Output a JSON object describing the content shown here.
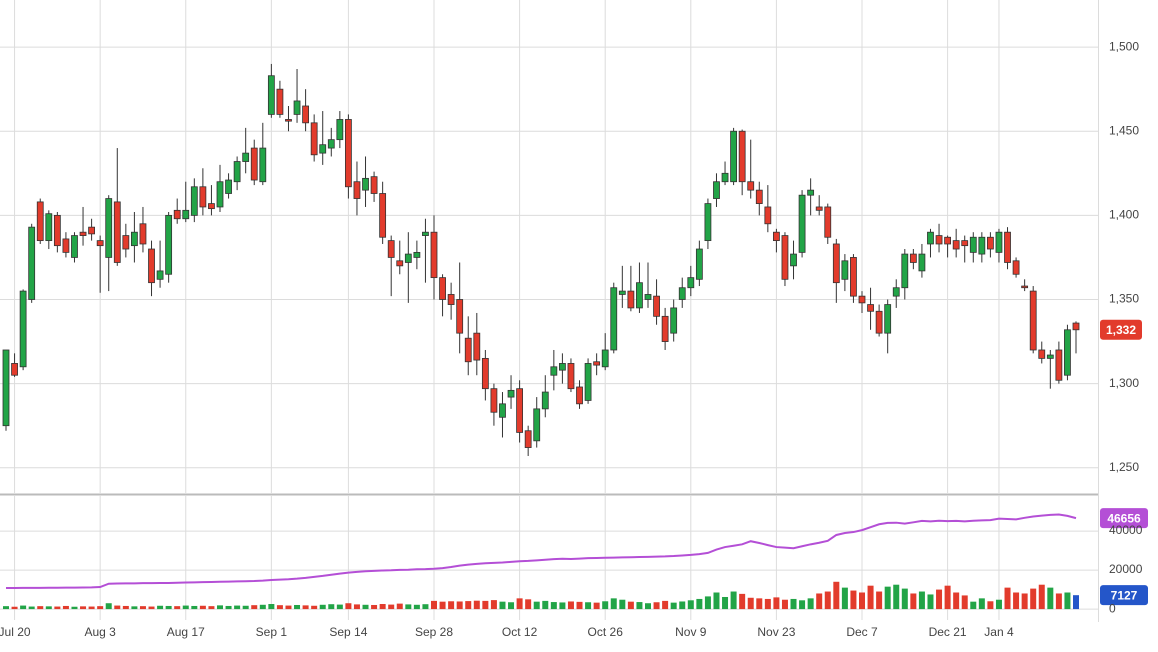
{
  "chart_data": [
    {
      "type": "candlestick",
      "up_color": "#22a447",
      "down_color": "#e23b2c",
      "open": [
        1275,
        1312,
        1310,
        1350,
        1408,
        1385,
        1400,
        1386,
        1375,
        1390,
        1393,
        1385,
        1375,
        1408,
        1388,
        1382,
        1395,
        1380,
        1362,
        1365,
        1403,
        1398,
        1400,
        1417,
        1407,
        1405,
        1413,
        1420,
        1432,
        1440,
        1420,
        1460,
        1475,
        1457,
        1460,
        1465,
        1455,
        1437,
        1440,
        1445,
        1457,
        1420,
        1415,
        1423,
        1413,
        1385,
        1373,
        1372,
        1375,
        1388,
        1390,
        1363,
        1353,
        1350,
        1327,
        1330,
        1315,
        1297,
        1280,
        1292,
        1297,
        1272,
        1266,
        1285,
        1305,
        1308,
        1312,
        1298,
        1290,
        1313,
        1310,
        1320,
        1353,
        1355,
        1345,
        1350,
        1352,
        1340,
        1330,
        1350,
        1357,
        1362,
        1385,
        1410,
        1420,
        1420,
        1450,
        1420,
        1415,
        1405,
        1390,
        1388,
        1370,
        1378,
        1412,
        1405,
        1405,
        1383,
        1362,
        1375,
        1352,
        1347,
        1343,
        1330,
        1352,
        1357,
        1377,
        1367,
        1383,
        1388,
        1387,
        1385,
        1385,
        1378,
        1377,
        1387,
        1378,
        1390,
        1373,
        1358,
        1355,
        1320,
        1315,
        1320,
        1305,
        1336
      ],
      "high": [
        1320,
        1318,
        1356,
        1395,
        1410,
        1403,
        1402,
        1390,
        1390,
        1405,
        1398,
        1388,
        1412,
        1440,
        1395,
        1402,
        1405,
        1385,
        1385,
        1402,
        1410,
        1420,
        1422,
        1428,
        1418,
        1430,
        1425,
        1435,
        1452,
        1445,
        1455,
        1490,
        1480,
        1465,
        1487,
        1475,
        1460,
        1462,
        1452,
        1462,
        1460,
        1432,
        1435,
        1426,
        1420,
        1388,
        1385,
        1390,
        1385,
        1398,
        1400,
        1365,
        1360,
        1372,
        1340,
        1342,
        1320,
        1300,
        1295,
        1305,
        1302,
        1275,
        1292,
        1305,
        1320,
        1318,
        1315,
        1302,
        1315,
        1318,
        1330,
        1360,
        1370,
        1370,
        1372,
        1372,
        1362,
        1345,
        1350,
        1363,
        1370,
        1385,
        1410,
        1425,
        1432,
        1452,
        1451,
        1445,
        1420,
        1418,
        1392,
        1390,
        1385,
        1415,
        1422,
        1412,
        1407,
        1386,
        1377,
        1377,
        1355,
        1357,
        1347,
        1350,
        1362,
        1380,
        1380,
        1383,
        1392,
        1395,
        1388,
        1392,
        1388,
        1390,
        1390,
        1390,
        1392,
        1393,
        1375,
        1362,
        1358,
        1325,
        1320,
        1325,
        1335,
        1337
      ],
      "low": [
        1272,
        1304,
        1308,
        1348,
        1383,
        1380,
        1378,
        1375,
        1372,
        1382,
        1385,
        1354,
        1355,
        1370,
        1375,
        1372,
        1378,
        1352,
        1357,
        1360,
        1395,
        1396,
        1396,
        1400,
        1400,
        1402,
        1410,
        1415,
        1425,
        1418,
        1418,
        1458,
        1458,
        1450,
        1455,
        1450,
        1432,
        1430,
        1435,
        1440,
        1410,
        1400,
        1405,
        1408,
        1383,
        1352,
        1365,
        1348,
        1368,
        1360,
        1350,
        1340,
        1338,
        1318,
        1305,
        1305,
        1290,
        1275,
        1268,
        1285,
        1265,
        1257,
        1262,
        1280,
        1296,
        1300,
        1295,
        1285,
        1288,
        1305,
        1308,
        1318,
        1345,
        1343,
        1342,
        1345,
        1335,
        1320,
        1325,
        1345,
        1352,
        1358,
        1380,
        1405,
        1418,
        1418,
        1412,
        1410,
        1400,
        1390,
        1378,
        1358,
        1362,
        1375,
        1400,
        1400,
        1383,
        1348,
        1355,
        1348,
        1342,
        1332,
        1328,
        1318,
        1345,
        1350,
        1368,
        1363,
        1375,
        1378,
        1375,
        1375,
        1372,
        1372,
        1372,
        1375,
        1372,
        1368,
        1363,
        1355,
        1318,
        1312,
        1297,
        1300,
        1302,
        1318
      ],
      "close": [
        1320,
        1305,
        1355,
        1393,
        1385,
        1401,
        1382,
        1378,
        1388,
        1388,
        1389,
        1382,
        1410,
        1372,
        1380,
        1390,
        1383,
        1360,
        1367,
        1400,
        1398,
        1403,
        1417,
        1405,
        1404,
        1420,
        1421,
        1432,
        1437,
        1421,
        1440,
        1483,
        1460,
        1456,
        1468,
        1455,
        1436,
        1442,
        1445,
        1457,
        1417,
        1410,
        1422,
        1413,
        1387,
        1375,
        1370,
        1377,
        1378,
        1390,
        1363,
        1350,
        1347,
        1330,
        1313,
        1314,
        1297,
        1283,
        1288,
        1296,
        1271,
        1262,
        1285,
        1295,
        1310,
        1312,
        1297,
        1288,
        1312,
        1311,
        1320,
        1357,
        1355,
        1345,
        1360,
        1353,
        1340,
        1325,
        1345,
        1357,
        1363,
        1380,
        1407,
        1420,
        1425,
        1450,
        1420,
        1415,
        1407,
        1395,
        1385,
        1362,
        1377,
        1412,
        1415,
        1403,
        1387,
        1360,
        1373,
        1352,
        1348,
        1343,
        1330,
        1347,
        1357,
        1377,
        1372,
        1377,
        1390,
        1383,
        1383,
        1380,
        1382,
        1387,
        1387,
        1380,
        1390,
        1372,
        1365,
        1357,
        1320,
        1315,
        1317,
        1302,
        1332,
        1332
      ],
      "last_close_label": "1,332",
      "ylim": [
        1235,
        1528
      ],
      "yticks": [
        {
          "value": 1250,
          "label": "1,250"
        },
        {
          "value": 1300,
          "label": "1,300"
        },
        {
          "value": 1350,
          "label": "1,350"
        },
        {
          "value": 1400,
          "label": "1,400"
        },
        {
          "value": 1450,
          "label": "1,450"
        },
        {
          "value": 1500,
          "label": "1,500"
        }
      ],
      "grid": true
    },
    {
      "type": "volume",
      "categories": [
        null,
        "Jul 20",
        null,
        null,
        null,
        null,
        null,
        null,
        null,
        null,
        null,
        "Aug 3",
        null,
        null,
        null,
        null,
        null,
        null,
        null,
        null,
        null,
        "Aug 17",
        null,
        null,
        null,
        null,
        null,
        null,
        null,
        null,
        null,
        "Sep 1",
        null,
        null,
        null,
        null,
        null,
        null,
        null,
        null,
        "Sep 14",
        null,
        null,
        null,
        null,
        null,
        null,
        null,
        null,
        null,
        "Sep 28",
        null,
        null,
        null,
        null,
        null,
        null,
        null,
        null,
        null,
        "Oct 12",
        null,
        null,
        null,
        null,
        null,
        null,
        null,
        null,
        null,
        "Oct 26",
        null,
        null,
        null,
        null,
        null,
        null,
        null,
        null,
        null,
        "Nov 9",
        null,
        null,
        null,
        null,
        null,
        null,
        null,
        null,
        null,
        "Nov 23",
        null,
        null,
        null,
        null,
        null,
        null,
        null,
        null,
        null,
        "Dec 7",
        null,
        null,
        null,
        null,
        null,
        null,
        null,
        null,
        null,
        "Dec 21",
        null,
        null,
        null,
        null,
        null,
        "Jan 4",
        null,
        null,
        null,
        null,
        null,
        null,
        null,
        null,
        null
      ],
      "series": [
        {
          "type": "bar",
          "color": "#2456c9",
          "values": [
            1500,
            1200,
            1800,
            1300,
            1500,
            1400,
            1300,
            1600,
            1200,
            1400,
            1300,
            1500,
            3000,
            1800,
            1600,
            1400,
            1500,
            1300,
            1700,
            1600,
            1500,
            1800,
            1600,
            1700,
            1500,
            1900,
            1600,
            1800,
            1700,
            2000,
            2200,
            2600,
            2000,
            1800,
            2100,
            1900,
            1700,
            2200,
            2500,
            2300,
            3000,
            2400,
            2200,
            2100,
            2600,
            2300,
            2800,
            2400,
            2200,
            2500,
            4200,
            3800,
            4000,
            3900,
            4100,
            4300,
            4200,
            4600,
            3800,
            3500,
            5500,
            5000,
            3800,
            4200,
            3600,
            3400,
            3900,
            3700,
            3500,
            3300,
            4000,
            5500,
            4800,
            3800,
            3600,
            3000,
            3500,
            4200,
            3300,
            3900,
            4500,
            5200,
            6500,
            8500,
            6200,
            9000,
            7800,
            5800,
            5500,
            5200,
            6000,
            4800,
            5200,
            4500,
            5500,
            8000,
            9000,
            14000,
            11000,
            9500,
            8500,
            12000,
            9000,
            11500,
            12500,
            10500,
            8000,
            9000,
            7500,
            10000,
            12000,
            8500,
            7000,
            3800,
            5500,
            4000,
            4800,
            11000,
            8500,
            8000,
            10500,
            12500,
            11000,
            8000,
            8500,
            7127
          ]
        },
        {
          "type": "line",
          "color": "#b44fd6",
          "values": [
            10800,
            10800,
            10850,
            10900,
            10900,
            10950,
            10950,
            11000,
            11000,
            11050,
            11100,
            11300,
            13000,
            13100,
            13200,
            13200,
            13300,
            13300,
            13400,
            13400,
            13500,
            13600,
            13700,
            13800,
            13900,
            14000,
            14100,
            14200,
            14300,
            14400,
            14600,
            14900,
            15100,
            15300,
            15600,
            16000,
            16500,
            17000,
            17600,
            18200,
            18700,
            19100,
            19400,
            19600,
            19800,
            19900,
            20100,
            20200,
            20400,
            20500,
            20700,
            21000,
            21600,
            22300,
            22800,
            23200,
            23500,
            23700,
            23900,
            24200,
            24500,
            24700,
            25000,
            25300,
            25600,
            25800,
            25700,
            25900,
            26100,
            26200,
            26300,
            26400,
            26500,
            26600,
            26700,
            26800,
            26900,
            27000,
            27200,
            27500,
            27800,
            28200,
            28800,
            30500,
            31800,
            32500,
            33200,
            34800,
            33900,
            32800,
            31800,
            31500,
            31200,
            32200,
            33200,
            34000,
            35000,
            38000,
            39000,
            39500,
            40500,
            42000,
            43500,
            44200,
            44300,
            43800,
            44500,
            45200,
            45000,
            45300,
            45100,
            45200,
            45000,
            45300,
            45500,
            45600,
            46400,
            46200,
            46000,
            46800,
            47500,
            47900,
            48300,
            48500,
            47800,
            46656
          ]
        }
      ],
      "ylim": [
        -5600,
        58500
      ],
      "yticks": [
        0,
        20000,
        40000
      ],
      "grid": true
    }
  ]
}
